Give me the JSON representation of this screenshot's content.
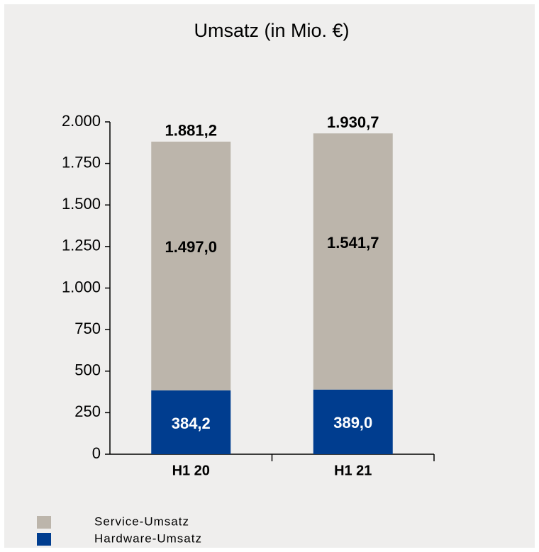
{
  "chart_data": {
    "type": "stacked_bar",
    "title": "Umsatz (in Mio. €)",
    "categories": [
      "H1 20",
      "H1 21"
    ],
    "series": [
      {
        "name": "Hardware-Umsatz",
        "color": "#003d8f",
        "values": [
          384.2,
          389.0
        ],
        "value_labels": [
          "384,2",
          "389,0"
        ]
      },
      {
        "name": "Service-Umsatz",
        "color": "#bcb5ab",
        "values": [
          1497.0,
          1541.7
        ],
        "value_labels": [
          "1.497,0",
          "1.541,7"
        ]
      }
    ],
    "totals": [
      1881.2,
      1930.7
    ],
    "total_labels": [
      "1.881,2",
      "1.930,7"
    ],
    "ylim": [
      0,
      2000
    ],
    "yticks": [
      0,
      250,
      500,
      750,
      {
        "value": 1000,
        "label": "1.000"
      },
      {
        "value": 1250,
        "label": "1.250"
      },
      {
        "value": 1500,
        "label": "1.500"
      },
      {
        "value": 1750,
        "label": "1.750"
      },
      {
        "value": 2000,
        "label": "2.000"
      }
    ],
    "grid": false,
    "legend": "bottom"
  }
}
